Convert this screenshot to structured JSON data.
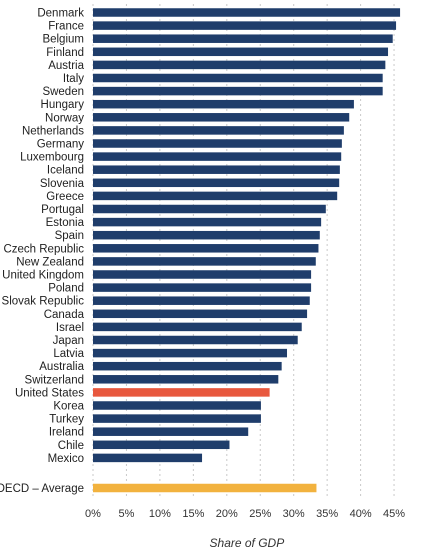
{
  "chart_data": {
    "type": "bar",
    "orientation": "horizontal",
    "title": "",
    "xlabel": "Share of GDP",
    "ylabel": "",
    "xlim": [
      0,
      46
    ],
    "xticks": [
      0,
      5,
      10,
      15,
      20,
      25,
      30,
      35,
      40,
      45
    ],
    "xtick_labels": [
      "0%",
      "5%",
      "10%",
      "15%",
      "20%",
      "25%",
      "30%",
      "35%",
      "40%",
      "45%"
    ],
    "grid": "vertical dashed",
    "colors": {
      "default": "#1f3d6b",
      "highlight": "#e8583e",
      "average": "#f2b23e"
    },
    "categories": [
      "Denmark",
      "France",
      "Belgium",
      "Finland",
      "Austria",
      "Italy",
      "Sweden",
      "Hungary",
      "Norway",
      "Netherlands",
      "Germany",
      "Luxembourg",
      "Iceland",
      "Slovenia",
      "Greece",
      "Portugal",
      "Estonia",
      "Spain",
      "Czech Republic",
      "New Zealand",
      "United Kingdom",
      "Poland",
      "Slovak Republic",
      "Canada",
      "Israel",
      "Japan",
      "Latvia",
      "Australia",
      "Switzerland",
      "United States",
      "Korea",
      "Turkey",
      "Ireland",
      "Chile",
      "Mexico"
    ],
    "values": [
      45.9,
      45.3,
      44.8,
      44.1,
      43.7,
      43.3,
      43.3,
      39.0,
      38.3,
      37.5,
      37.2,
      37.1,
      36.9,
      36.8,
      36.5,
      34.8,
      34.1,
      33.9,
      33.7,
      33.3,
      32.6,
      32.6,
      32.4,
      32.0,
      31.2,
      30.6,
      29.0,
      28.2,
      27.7,
      26.4,
      25.1,
      25.1,
      23.2,
      20.4,
      16.3
    ],
    "highlight_category": "United States",
    "average": {
      "label": "OECD – Average",
      "value": 33.4
    }
  }
}
